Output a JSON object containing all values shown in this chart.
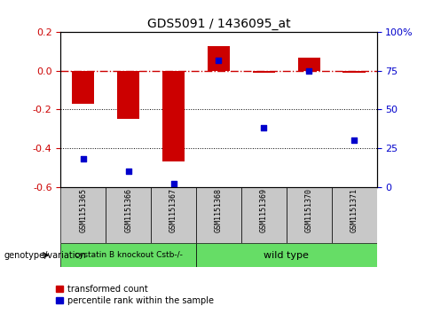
{
  "title": "GDS5091 / 1436095_at",
  "samples": [
    "GSM1151365",
    "GSM1151366",
    "GSM1151367",
    "GSM1151368",
    "GSM1151369",
    "GSM1151370",
    "GSM1151371"
  ],
  "red_values": [
    -0.17,
    -0.25,
    -0.47,
    0.13,
    -0.01,
    0.07,
    -0.01
  ],
  "blue_values": [
    18,
    10,
    2,
    82,
    38,
    75,
    30
  ],
  "ylim_left": [
    -0.6,
    0.2
  ],
  "ylim_right": [
    0,
    100
  ],
  "left_ticks": [
    0.2,
    0.0,
    -0.2,
    -0.4,
    -0.6
  ],
  "right_ticks": [
    100,
    75,
    50,
    25,
    0
  ],
  "groups": [
    {
      "label": "cystatin B knockout Cstb-/-",
      "start": 0,
      "end": 3,
      "color": "#66DD66"
    },
    {
      "label": "wild type",
      "start": 3,
      "end": 7,
      "color": "#66DD66"
    }
  ],
  "red_color": "#CC0000",
  "blue_color": "#0000CC",
  "dashed_line_color": "#CC0000",
  "bar_width": 0.5,
  "sample_box_color": "#C8C8C8",
  "group_label": "genotype/variation",
  "legend_red": "transformed count",
  "legend_blue": "percentile rank within the sample",
  "fig_width": 4.88,
  "fig_height": 3.63,
  "dpi": 100
}
